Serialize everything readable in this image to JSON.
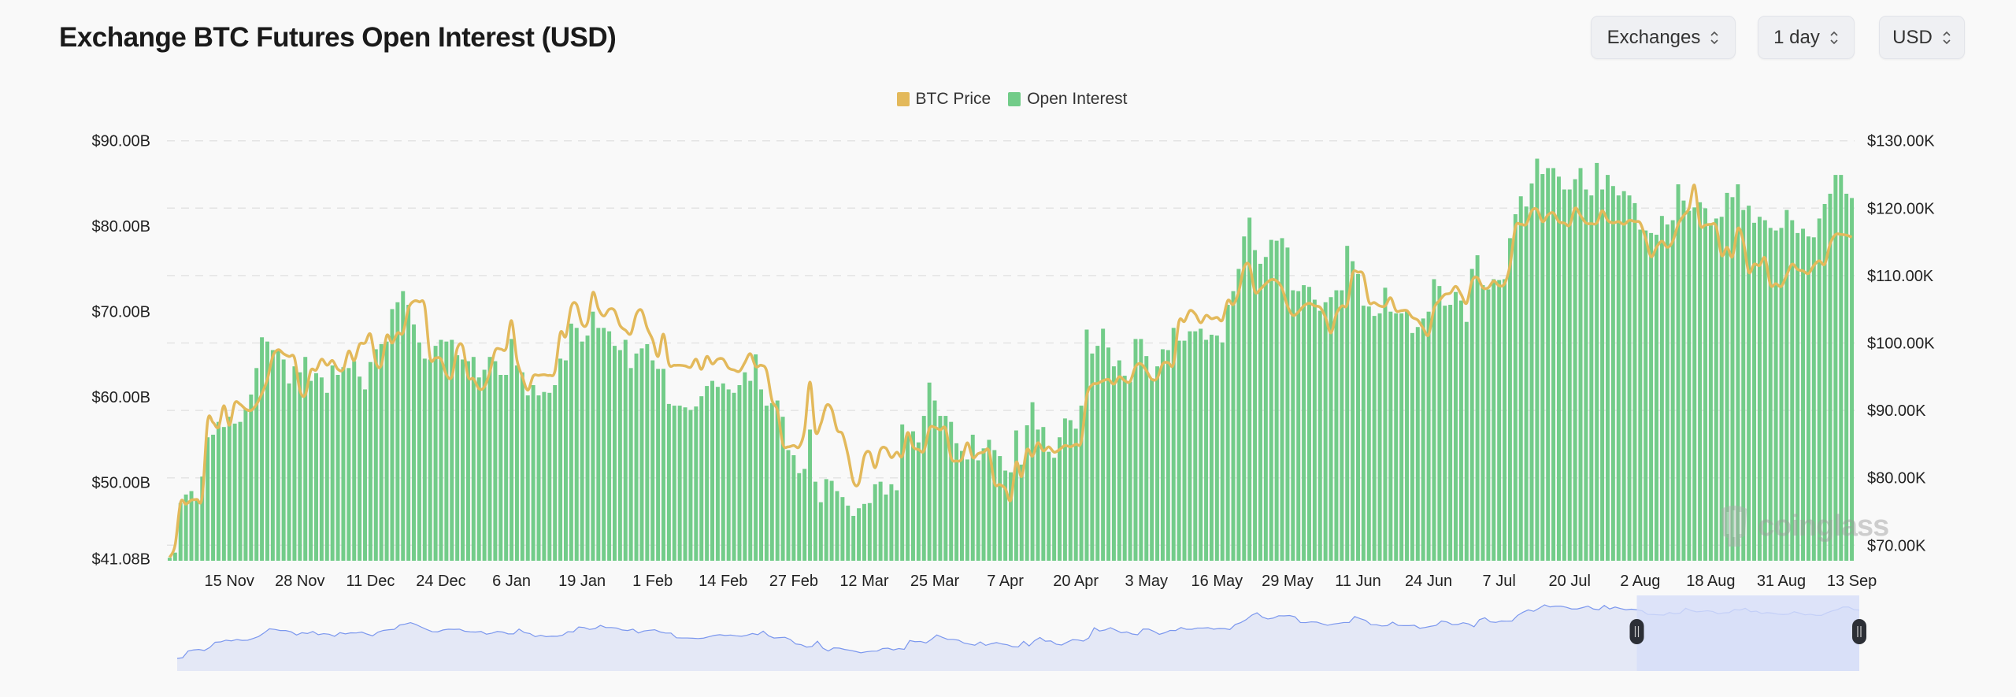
{
  "header": {
    "title": "Exchange BTC Futures Open Interest (USD)",
    "controls": [
      {
        "label": "Exchanges",
        "icon": "chevron-up-down-icon"
      },
      {
        "label": "1 day",
        "icon": "chevron-up-down-icon"
      },
      {
        "label": "USD",
        "icon": "chevron-up-down-icon"
      }
    ]
  },
  "watermark": "coinglass",
  "colors": {
    "price": "#e3b95b",
    "open_interest": "#72cc89",
    "navigator_line": "#7b97ee",
    "navigator_fill": "#e4e8f6",
    "navigator_selection": "#d6ddf9",
    "grid": "#e4e4e4"
  },
  "chart_data": {
    "type": "bar+line",
    "title": "Exchange BTC Futures Open Interest (USD)",
    "legend": {
      "position": "top-center",
      "items": [
        "BTC Price",
        "Open Interest"
      ]
    },
    "grid": true,
    "x_tick_labels": [
      "15 Nov",
      "28 Nov",
      "11 Dec",
      "24 Dec",
      "6 Jan",
      "19 Jan",
      "1 Feb",
      "14 Feb",
      "27 Feb",
      "12 Mar",
      "25 Mar",
      "7 Apr",
      "20 Apr",
      "3 May",
      "16 May",
      "29 May",
      "11 Jun",
      "24 Jun",
      "7 Jul",
      "20 Jul",
      "2 Aug",
      "18 Aug",
      "31 Aug",
      "13 Sep"
    ],
    "y_left": {
      "unit": "USD billions",
      "ylim": [
        41.08,
        90
      ],
      "tick_labels": [
        "$90.00B",
        "$80.00B",
        "$70.00B",
        "$60.00B",
        "$50.00B",
        "$41.08B"
      ],
      "tick_values": [
        90,
        80,
        70,
        60,
        50,
        41.08
      ]
    },
    "y_right": {
      "unit": "USD thousands",
      "ylim": [
        67.7,
        130
      ],
      "tick_labels": [
        "$130.00K",
        "$120.00K",
        "$110.00K",
        "$100.00K",
        "$90.00K",
        "$80.00K",
        "$70.00K"
      ],
      "tick_values": [
        130,
        120,
        110,
        100,
        90,
        80,
        70
      ]
    },
    "series": [
      {
        "name": "Open Interest",
        "type": "bar",
        "axis": "left",
        "values": [
          41.2,
          41.8,
          47.6,
          48.6,
          49,
          48.1,
          50.7,
          55.3,
          55.6,
          57.1,
          56.5,
          57.7,
          56.9,
          57.1,
          58.6,
          60.3,
          63.4,
          67,
          66.5,
          65.5,
          65.5,
          64.4,
          61.6,
          63.6,
          62.9,
          64.7,
          61.9,
          62.8,
          62.3,
          60.5,
          63.7,
          62.6,
          63.5,
          63.4,
          64.2,
          62.4,
          60.9,
          64.1,
          65.6,
          66.2,
          66.5,
          70.3,
          71.1,
          72.4,
          70.8,
          68.5,
          66.4,
          64.5,
          64.4,
          66,
          66.7,
          66.5,
          66.7,
          64.9,
          64.4,
          64.2,
          64.7,
          62.3,
          63.2,
          64.7,
          64.2,
          62.6,
          62.6,
          66.8,
          63.7,
          62.9,
          60.2,
          61.4,
          60.2,
          60.6,
          60.5,
          61.4,
          64.5,
          64.3,
          68.6,
          68.1,
          66.5,
          67.2,
          70,
          68.1,
          68.1,
          67.7,
          66,
          65.5,
          66.7,
          63.4,
          65.1,
          65.7,
          66.2,
          64.3,
          63.3,
          63.3,
          59.2,
          59,
          59,
          58.8,
          58.5,
          58.9,
          60.1,
          61.3,
          61.9,
          61.2,
          61.6,
          60.9,
          60.5,
          61.4,
          62.9,
          61.9,
          65,
          60.9,
          59,
          59.3,
          59.6,
          57.7,
          53.8,
          53.2,
          51.1,
          51.6,
          56.2,
          50.1,
          47.7,
          50.4,
          50.2,
          49,
          48.3,
          47.3,
          46.1,
          47,
          47.5,
          47.6,
          49.8,
          50.1,
          48.6,
          49.8,
          49.1,
          56.8,
          55.8,
          56,
          54.7,
          57.8,
          61.7,
          59.6,
          57.8,
          57.8,
          57.1,
          54.6,
          53.7,
          52.7,
          55.6,
          52.6,
          54,
          55,
          53.8,
          53.1,
          51.4,
          51.2,
          56.1,
          52.1,
          56.7,
          59.4,
          56.2,
          56.5,
          53.6,
          52.9,
          55.3,
          57.5,
          57.3,
          56.3,
          59,
          67.9,
          65.1,
          66,
          68,
          65.8,
          63.6,
          64.3,
          62.5,
          61.8,
          66.8,
          66.8,
          64.8,
          62.2,
          63.6,
          65.6,
          65.5,
          68.1,
          66.6,
          66.6,
          67.7,
          67.7,
          68,
          66.7,
          67.3,
          67.2,
          66.4,
          70.8,
          72.4,
          75,
          78.8,
          81,
          77.2,
          75.6,
          76.4,
          78.4,
          78.3,
          78.6,
          77.5,
          72.5,
          72.4,
          73.1,
          72.9,
          71.4,
          70.1,
          71.1,
          71.7,
          72.5,
          72.5,
          77.7,
          75.9,
          74.4,
          70.7,
          70.6,
          69.5,
          69.8,
          72.8,
          70,
          69.8,
          69.8,
          70.1,
          67.5,
          68.2,
          69.2,
          70,
          73.8,
          73,
          70.7,
          70.8,
          72.3,
          71.3,
          68.8,
          75,
          76.6,
          73.1,
          72.6,
          73.8,
          73.7,
          73.8,
          78.6,
          81.4,
          83.5,
          82.3,
          85,
          87.9,
          86.1,
          86.8,
          86.8,
          85.8,
          84.3,
          84.3,
          85.5,
          86.8,
          84.3,
          83.6,
          87.4,
          84.3,
          86,
          84.7,
          83.6,
          84.1,
          83.6,
          82.7,
          79.6,
          79.5,
          79.2,
          79,
          81.2,
          80.2,
          80.7,
          84.9,
          83,
          81.8,
          82.2,
          82.8,
          82.1,
          80.1,
          80.9,
          81.1,
          83.9,
          83.4,
          84.9,
          81.9,
          82.4,
          80.4,
          81.1,
          80.7,
          79.8,
          79.5,
          79.8,
          81.9,
          80.7,
          79.2,
          79.7,
          78.8,
          78.7,
          80.9,
          82.6,
          83.8,
          86,
          86,
          83.8,
          83.3
        ]
      },
      {
        "name": "BTC Price",
        "type": "line",
        "axis": "right",
        "values": [
          68.2,
          70,
          76.3,
          76.1,
          76.7,
          76.8,
          77.2,
          88.4,
          88.2,
          87.5,
          90.7,
          87.8,
          91.1,
          90.9,
          90.2,
          90,
          90.9,
          92.5,
          94.6,
          98,
          99,
          98.4,
          98,
          97.8,
          93,
          92.3,
          95.9,
          96,
          97.6,
          96.7,
          97.4,
          96.1,
          96.1,
          98.8,
          97.4,
          99.8,
          100,
          101.3,
          97.1,
          96.7,
          101.1,
          100,
          101.5,
          101.5,
          105.1,
          106.2,
          106.1,
          105.5,
          97.8,
          97.8,
          97.6,
          95.3,
          95,
          99.2,
          99.5,
          95,
          94.7,
          93.2,
          93.5,
          95.7,
          98.9,
          99.1,
          99.2,
          103.3,
          97.5,
          95,
          93,
          95.1,
          95.2,
          95.3,
          95.2,
          95.8,
          101.5,
          101,
          105.4,
          105.7,
          102.8,
          103,
          107.5,
          105.1,
          104,
          105,
          104.8,
          102.6,
          101.9,
          101.4,
          104.3,
          104.8,
          102.2,
          100.5,
          98,
          101.3,
          96.9,
          96.7,
          96.7,
          96.6,
          96.4,
          97.6,
          96.1,
          98,
          96.9,
          97.6,
          97.6,
          96.3,
          96,
          95.8,
          97.1,
          98.4,
          96.5,
          96.7,
          95.9,
          91.5,
          90,
          85,
          84.6,
          84.8,
          84.6,
          87.1,
          94.2,
          86.9,
          88,
          90.7,
          90.2,
          87.1,
          86.5,
          83.4,
          79.4,
          79.2,
          83.2,
          83.8,
          81.5,
          84.2,
          84.4,
          83,
          83.8,
          83.2,
          86.7,
          84.6,
          84.2,
          84,
          87.3,
          87.5,
          87.1,
          87.3,
          83,
          82.5,
          82.8,
          85.2,
          83,
          83.6,
          83.8,
          84,
          79.2,
          79,
          78.4,
          76.7,
          82.3,
          80.2,
          84.2,
          83.2,
          85.2,
          84,
          84.6,
          83.8,
          84.2,
          84.8,
          84.6,
          85,
          85.4,
          92.1,
          93.8,
          94,
          94.4,
          94.6,
          93.9,
          95,
          94.4,
          94.3,
          96.5,
          96.9,
          95.9,
          94.6,
          94.8,
          96.9,
          97.1,
          96.9,
          103.2,
          103.2,
          104.8,
          104.3,
          103,
          104.1,
          103.6,
          103.8,
          103.4,
          106.3,
          105.7,
          107.6,
          111.2,
          111.5,
          107.6,
          108,
          108.8,
          109.4,
          109.2,
          108.1,
          105.5,
          104.1,
          104.6,
          105.5,
          105.9,
          105.5,
          105.3,
          103.8,
          101.5,
          104.3,
          105.5,
          105.7,
          110.3,
          110.5,
          110.1,
          106.1,
          106,
          105.5,
          105.5,
          106.7,
          104.8,
          104.8,
          104.8,
          103.8,
          103.4,
          102.2,
          101.2,
          105.1,
          106.3,
          107.2,
          107.4,
          108.4,
          107.2,
          105.9,
          109.2,
          109.7,
          108.2,
          108.2,
          109.2,
          108.5,
          108.8,
          111.5,
          117.2,
          117.6,
          117.6,
          119.6,
          119.8,
          118,
          119,
          119.3,
          118,
          117.8,
          117.5,
          120,
          118.9,
          117.8,
          117.7,
          117.8,
          119.6,
          118.2,
          117.8,
          118,
          117.6,
          118.2,
          118,
          117.8,
          115.5,
          112.8,
          114.2,
          115.1,
          114.2,
          115.1,
          117.6,
          118.9,
          120,
          123.4,
          117.6,
          117.5,
          117.6,
          117.3,
          113,
          114.2,
          112.8,
          117,
          115.1,
          110.5,
          111.7,
          111.5,
          112.6,
          108.6,
          108.8,
          108.4,
          110.1,
          111.7,
          110.9,
          110.7,
          110.3,
          111.5,
          112.2,
          111.7,
          114.7,
          116.1,
          116.1,
          116,
          115.7
        ]
      }
    ],
    "navigator": {
      "selected_range": [
        "2 Aug",
        "13 Sep"
      ]
    }
  }
}
